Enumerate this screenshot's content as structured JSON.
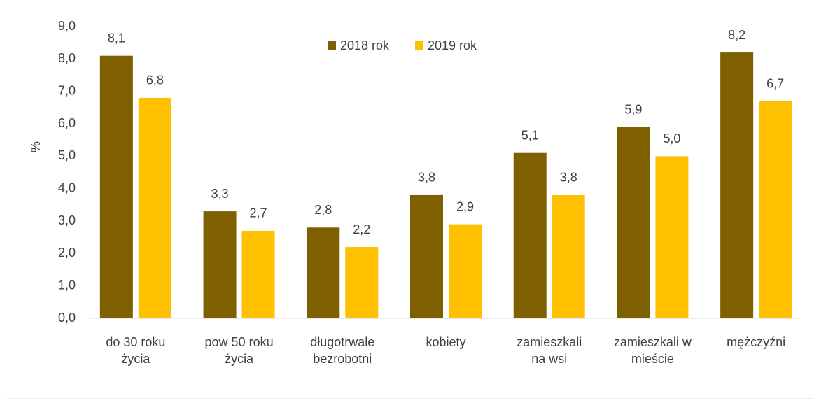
{
  "chart_data": {
    "type": "bar",
    "y_label": "%",
    "categories": [
      [
        "do 30 roku",
        "życia"
      ],
      [
        "pow 50 roku",
        "życia"
      ],
      [
        "długotrwale",
        "bezrobotni"
      ],
      [
        "kobiety"
      ],
      [
        "zamieszkali",
        "na wsi"
      ],
      [
        "zamieszkali w",
        "mieście"
      ],
      [
        "mężczyźni"
      ]
    ],
    "series": [
      {
        "name": "2018 rok",
        "color": "#7f6000",
        "values": [
          8.1,
          3.3,
          2.8,
          3.8,
          5.1,
          5.9,
          8.2
        ],
        "value_labels": [
          "8,1",
          "3,3",
          "2,8",
          "3,8",
          "5,1",
          "5,9",
          "8,2"
        ]
      },
      {
        "name": "2019 rok",
        "color": "#ffc000",
        "values": [
          6.8,
          2.7,
          2.2,
          2.9,
          3.8,
          5.0,
          6.7
        ],
        "value_labels": [
          "6,8",
          "2,7",
          "2,2",
          "2,9",
          "3,8",
          "5,0",
          "6,7"
        ]
      }
    ],
    "ylim": [
      0,
      9
    ],
    "yticks": [
      {
        "value": 0,
        "label": "0,0"
      },
      {
        "value": 1,
        "label": "1,0"
      },
      {
        "value": 2,
        "label": "2,0"
      },
      {
        "value": 3,
        "label": "3,0"
      },
      {
        "value": 4,
        "label": "4,0"
      },
      {
        "value": 5,
        "label": "5,0"
      },
      {
        "value": 6,
        "label": "6,0"
      },
      {
        "value": 7,
        "label": "7,0"
      },
      {
        "value": 8,
        "label": "8,0"
      },
      {
        "value": 9,
        "label": "9,0"
      }
    ],
    "grid": false,
    "legend": "top"
  }
}
